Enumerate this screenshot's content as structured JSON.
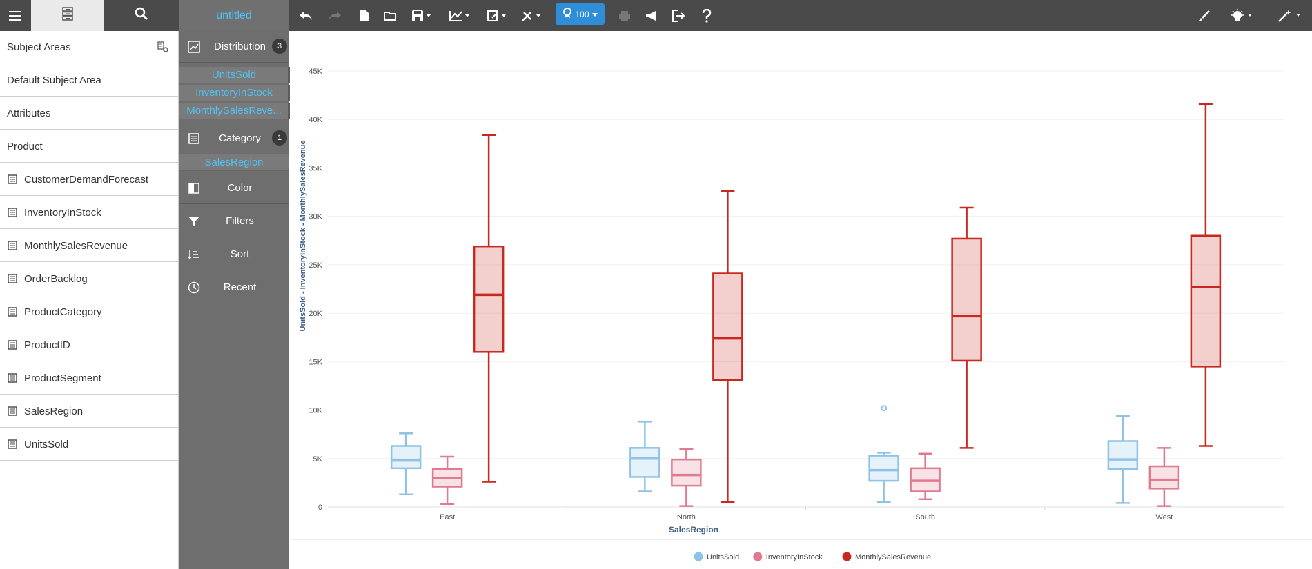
{
  "toolbar": {
    "document_title": "untitled",
    "zoom_value": "100"
  },
  "sidebar": {
    "items": [
      {
        "label": "Subject Areas",
        "icon": "manage-subject-areas-icon"
      },
      {
        "label": "Default Subject Area"
      },
      {
        "label": "Attributes"
      },
      {
        "label": "Product"
      },
      {
        "label": "CustomerDemandForecast",
        "icon": "table-icon"
      },
      {
        "label": "InventoryInStock",
        "icon": "table-icon"
      },
      {
        "label": "MonthlySalesRevenue",
        "icon": "table-icon"
      },
      {
        "label": "OrderBacklog",
        "icon": "table-icon"
      },
      {
        "label": "ProductCategory",
        "icon": "table-icon"
      },
      {
        "label": "ProductID",
        "icon": "table-icon"
      },
      {
        "label": "ProductSegment",
        "icon": "table-icon"
      },
      {
        "label": "SalesRegion",
        "icon": "table-icon"
      },
      {
        "label": "UnitsSold",
        "icon": "table-icon"
      }
    ]
  },
  "panel": {
    "distribution": {
      "label": "Distribution",
      "count": "3",
      "fields": [
        "UnitsSold",
        "InventoryInStock",
        "MonthlySalesReve..."
      ]
    },
    "category": {
      "label": "Category",
      "count": "1",
      "fields": [
        "SalesRegion"
      ]
    },
    "color": {
      "label": "Color"
    },
    "filters": {
      "label": "Filters"
    },
    "sort": {
      "label": "Sort"
    },
    "recent": {
      "label": "Recent"
    }
  },
  "colors": {
    "UnitsSold": "#8ec2e6",
    "InventoryInStock": "#e07a8e",
    "MonthlySalesRevenue": "#c8281e",
    "accent": "#2e8fd8",
    "title_link": "#4fc3f7"
  },
  "chart_data": {
    "type": "boxplot",
    "xlabel": "SalesRegion",
    "ylabel": "UnitsSold - InventoryInStock - MonthlySalesRevenue",
    "ylim": [
      0,
      45000
    ],
    "yticks": [
      0,
      5000,
      10000,
      15000,
      20000,
      25000,
      30000,
      35000,
      40000,
      45000
    ],
    "ytick_labels": [
      "0",
      "5K",
      "10K",
      "15K",
      "20K",
      "25K",
      "30K",
      "35K",
      "40K",
      "45K"
    ],
    "categories": [
      "East",
      "North",
      "South",
      "West"
    ],
    "legend": {
      "position": "bottom",
      "entries": [
        "UnitsSold",
        "InventoryInStock",
        "MonthlySalesRevenue"
      ]
    },
    "series": [
      {
        "name": "UnitsSold",
        "boxes": [
          {
            "min": 1300,
            "q1": 4000,
            "median": 4800,
            "q3": 6300,
            "max": 7600
          },
          {
            "min": 1600,
            "q1": 3100,
            "median": 5000,
            "q3": 6100,
            "max": 8800
          },
          {
            "min": 500,
            "q1": 2700,
            "median": 3800,
            "q3": 5300,
            "max": 5600,
            "outliers": [
              10200
            ]
          },
          {
            "min": 400,
            "q1": 3900,
            "median": 4900,
            "q3": 6800,
            "max": 9400
          }
        ]
      },
      {
        "name": "InventoryInStock",
        "boxes": [
          {
            "min": 300,
            "q1": 2100,
            "median": 3000,
            "q3": 3900,
            "max": 5200
          },
          {
            "min": 100,
            "q1": 2200,
            "median": 3300,
            "q3": 4900,
            "max": 6000
          },
          {
            "min": 800,
            "q1": 1600,
            "median": 2700,
            "q3": 4000,
            "max": 5500
          },
          {
            "min": 100,
            "q1": 1900,
            "median": 2800,
            "q3": 4200,
            "max": 6100
          }
        ]
      },
      {
        "name": "MonthlySalesRevenue",
        "boxes": [
          {
            "min": 2600,
            "q1": 16000,
            "median": 21900,
            "q3": 26900,
            "max": 38400
          },
          {
            "min": 500,
            "q1": 13100,
            "median": 17400,
            "q3": 24100,
            "max": 32600
          },
          {
            "min": 6100,
            "q1": 15100,
            "median": 19700,
            "q3": 27700,
            "max": 30900
          },
          {
            "min": 6300,
            "q1": 14500,
            "median": 22700,
            "q3": 28000,
            "max": 41600
          }
        ]
      }
    ]
  }
}
